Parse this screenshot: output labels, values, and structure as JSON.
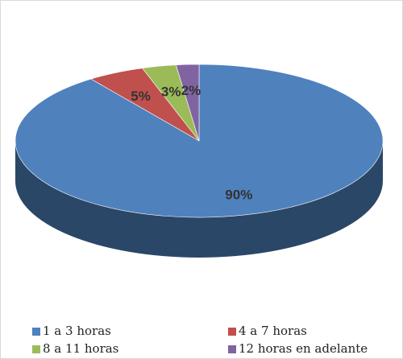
{
  "chart_data": {
    "type": "pie",
    "categories": [
      "1 a 3 horas",
      "4 a 7 horas",
      "8 a 11 horas",
      "12 horas en adelante"
    ],
    "values": [
      90,
      5,
      3,
      2
    ],
    "value_labels": [
      "90%",
      "5%",
      "3%",
      "2%"
    ],
    "colors": [
      "#4f81bd",
      "#c0504d",
      "#9bbb59",
      "#8064a2"
    ],
    "legend": "bottom"
  }
}
